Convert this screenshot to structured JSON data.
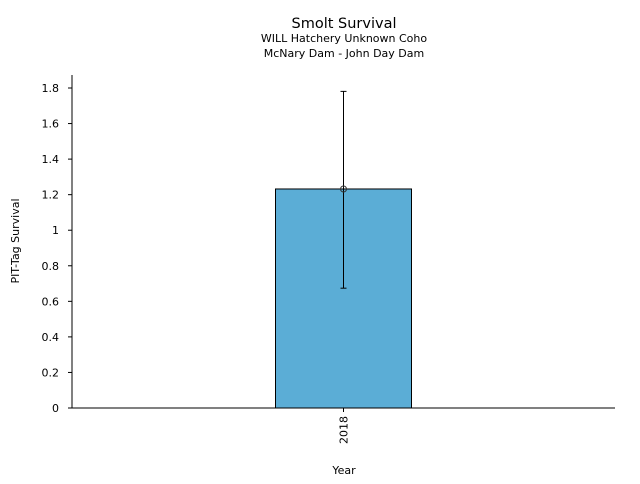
{
  "chart_data": {
    "type": "bar",
    "title": "Smolt Survival",
    "subtitle_lines": [
      "WILL Hatchery Unknown Coho",
      "McNary Dam - John Day Dam"
    ],
    "xlabel": "Year",
    "ylabel": "PIT-Tag Survival",
    "categories": [
      "2018"
    ],
    "values": [
      1.232
    ],
    "error_low": [
      0.674
    ],
    "error_high": [
      1.781
    ],
    "ylim": [
      0,
      1.87
    ],
    "yticks": [
      0,
      0.2,
      0.4,
      0.6,
      0.8,
      1,
      1.2,
      1.4,
      1.6,
      1.8
    ],
    "ytick_labels": [
      "0",
      "0.2",
      "0.4",
      "0.6",
      "0.8",
      "1",
      "1.2",
      "1.4",
      "1.6",
      "1.8"
    ],
    "grid": false,
    "bar_color": "#5badd6"
  }
}
